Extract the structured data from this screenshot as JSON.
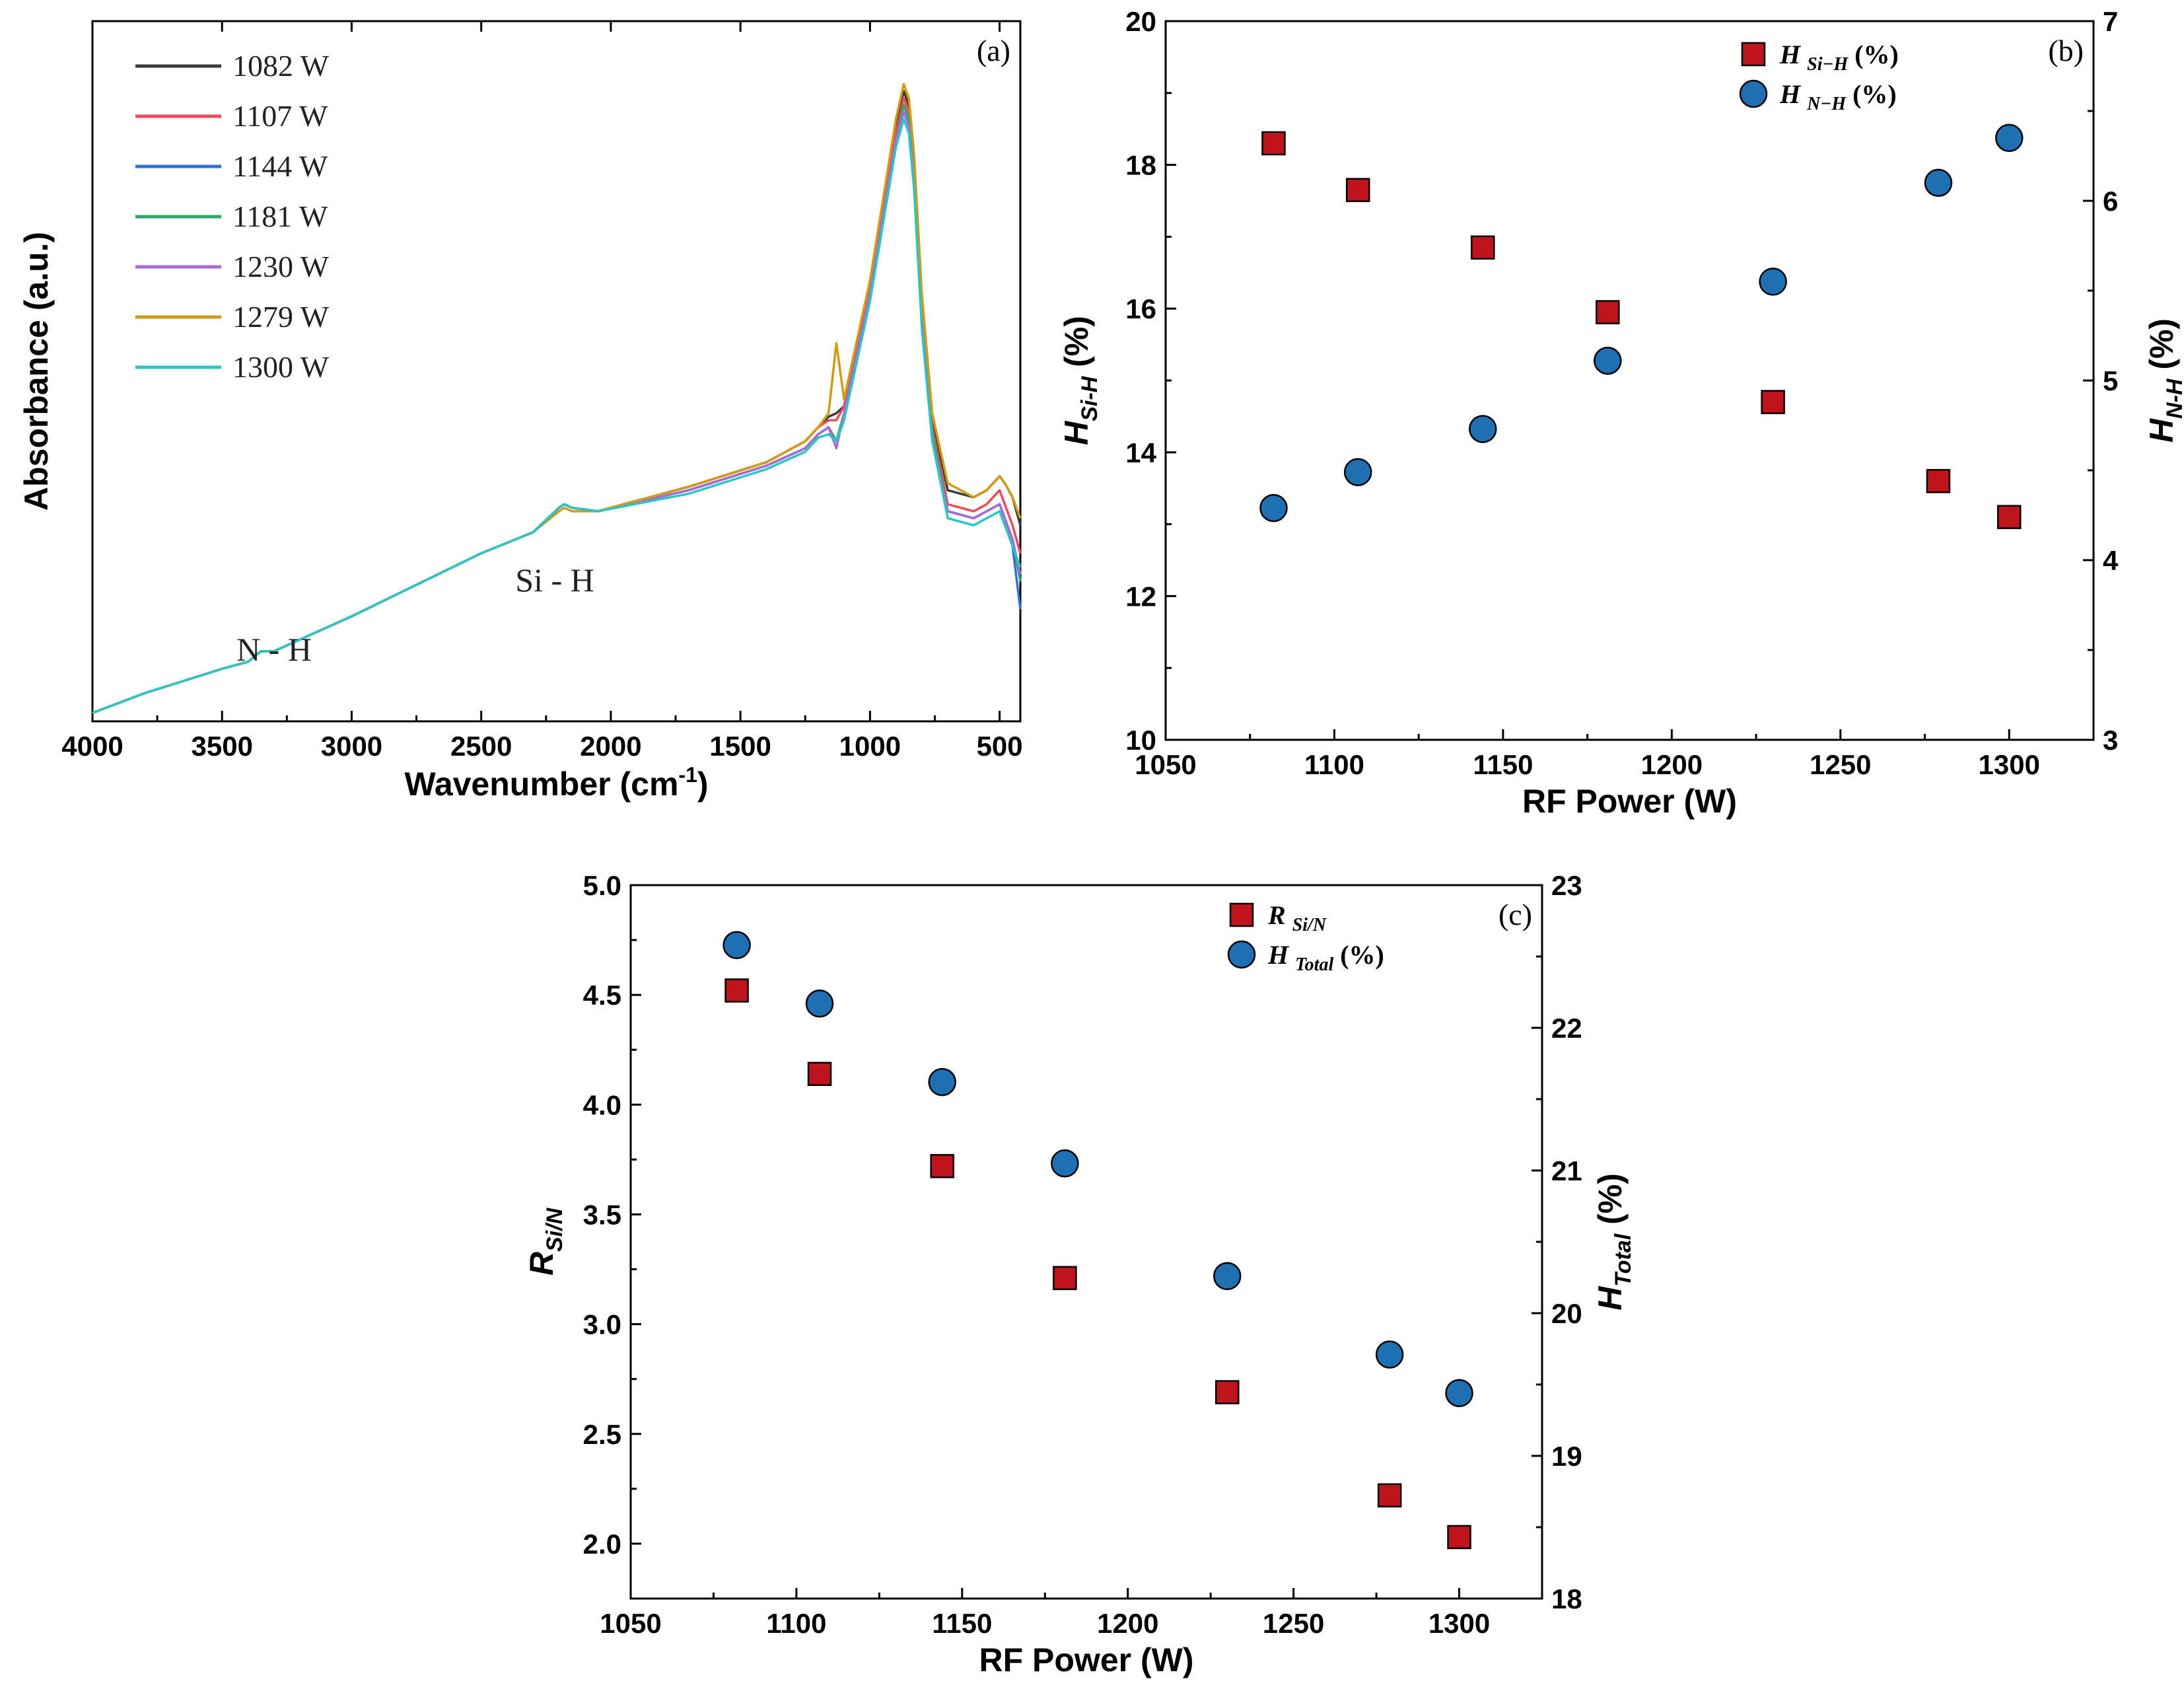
{
  "chart_data": [
    {
      "type": "line",
      "panel_label": "(a)",
      "title": "",
      "xlabel": "Wavenumber (cm",
      "xlabel_sup": "-1",
      "xlabel_end": ")",
      "ylabel": "Absorbance (a.u.)",
      "xlim": [
        4000,
        420
      ],
      "xticks": [
        4000,
        3500,
        3000,
        2500,
        2000,
        1500,
        1000,
        500
      ],
      "xtick_labels": [
        "4000",
        "3500",
        "3000",
        "2500",
        "2000",
        "1500",
        "1000",
        "500"
      ],
      "ylim": [
        0,
        1
      ],
      "annotations": [
        "N - H",
        "Si - H"
      ],
      "x": [
        4000,
        3800,
        3500,
        3400,
        3350,
        3300,
        3000,
        2500,
        2300,
        2200,
        2180,
        2150,
        2050,
        1700,
        1400,
        1250,
        1200,
        1160,
        1130,
        1100,
        1000,
        900,
        870,
        850,
        830,
        800,
        760,
        700,
        600,
        550,
        500,
        480,
        450,
        420
      ],
      "series": [
        {
          "name": "1082 W",
          "color": "#3a3a3a",
          "values": [
            0.012,
            0.04,
            0.075,
            0.085,
            0.1,
            0.1,
            0.15,
            0.24,
            0.27,
            0.305,
            0.31,
            0.305,
            0.3,
            0.335,
            0.37,
            0.4,
            0.42,
            0.435,
            0.44,
            0.45,
            0.62,
            0.85,
            0.9,
            0.88,
            0.8,
            0.6,
            0.43,
            0.33,
            0.32,
            0.33,
            0.35,
            0.34,
            0.32,
            0.28
          ]
        },
        {
          "name": "1107 W",
          "color": "#ef4a55",
          "values": [
            0.012,
            0.04,
            0.075,
            0.085,
            0.1,
            0.1,
            0.15,
            0.24,
            0.27,
            0.305,
            0.31,
            0.305,
            0.3,
            0.335,
            0.37,
            0.4,
            0.42,
            0.43,
            0.43,
            0.45,
            0.62,
            0.84,
            0.89,
            0.87,
            0.79,
            0.59,
            0.42,
            0.31,
            0.3,
            0.31,
            0.33,
            0.31,
            0.28,
            0.24
          ]
        },
        {
          "name": "1144 W",
          "color": "#2f6fd8",
          "values": [
            0.012,
            0.04,
            0.075,
            0.085,
            0.1,
            0.1,
            0.15,
            0.24,
            0.27,
            0.305,
            0.31,
            0.305,
            0.3,
            0.33,
            0.365,
            0.39,
            0.41,
            0.42,
            0.4,
            0.44,
            0.61,
            0.83,
            0.88,
            0.86,
            0.78,
            0.58,
            0.41,
            0.3,
            0.29,
            0.3,
            0.31,
            0.29,
            0.25,
            0.16
          ]
        },
        {
          "name": "1181 W",
          "color": "#2ea868",
          "values": [
            0.012,
            0.04,
            0.075,
            0.085,
            0.1,
            0.1,
            0.15,
            0.24,
            0.27,
            0.305,
            0.31,
            0.305,
            0.3,
            0.33,
            0.365,
            0.39,
            0.41,
            0.42,
            0.4,
            0.44,
            0.61,
            0.83,
            0.88,
            0.86,
            0.78,
            0.58,
            0.41,
            0.3,
            0.29,
            0.3,
            0.31,
            0.29,
            0.26,
            0.2
          ]
        },
        {
          "name": "1230 W",
          "color": "#a86ad6",
          "values": [
            0.012,
            0.04,
            0.075,
            0.085,
            0.1,
            0.1,
            0.15,
            0.24,
            0.27,
            0.305,
            0.31,
            0.305,
            0.3,
            0.33,
            0.365,
            0.39,
            0.41,
            0.42,
            0.39,
            0.44,
            0.61,
            0.83,
            0.87,
            0.85,
            0.77,
            0.57,
            0.4,
            0.3,
            0.29,
            0.3,
            0.31,
            0.29,
            0.26,
            0.21
          ]
        },
        {
          "name": "1279 W",
          "color": "#d19b14",
          "values": [
            0.012,
            0.04,
            0.075,
            0.085,
            0.1,
            0.1,
            0.15,
            0.24,
            0.27,
            0.3,
            0.305,
            0.3,
            0.3,
            0.335,
            0.37,
            0.4,
            0.42,
            0.44,
            0.54,
            0.46,
            0.63,
            0.86,
            0.91,
            0.89,
            0.81,
            0.61,
            0.44,
            0.34,
            0.32,
            0.33,
            0.35,
            0.34,
            0.32,
            0.29
          ]
        },
        {
          "name": "1300 W",
          "color": "#2ac6c6",
          "values": [
            0.012,
            0.04,
            0.075,
            0.085,
            0.1,
            0.1,
            0.15,
            0.24,
            0.27,
            0.305,
            0.31,
            0.305,
            0.3,
            0.325,
            0.36,
            0.385,
            0.405,
            0.41,
            0.4,
            0.43,
            0.6,
            0.82,
            0.86,
            0.84,
            0.76,
            0.56,
            0.4,
            0.29,
            0.28,
            0.29,
            0.3,
            0.28,
            0.25,
            0.22
          ]
        }
      ]
    },
    {
      "type": "scatter",
      "panel_label": "(b)",
      "title": "",
      "xlabel": "RF Power (W)",
      "ylabel_main": "H",
      "ylabel_sub": "Si-H",
      "ylabel_end": " (%)",
      "y2label_main": "H",
      "y2label_sub": "N-H",
      "y2label_end": " (%)",
      "xlim": [
        1050,
        1325
      ],
      "xticks": [
        1050,
        1100,
        1150,
        1200,
        1250,
        1300
      ],
      "xtick_labels": [
        "1050",
        "1100",
        "1150",
        "1200",
        "1250",
        "1300"
      ],
      "ylim": [
        10,
        20
      ],
      "yticks": [
        10,
        12,
        14,
        16,
        18,
        20
      ],
      "ytick_labels": [
        "10",
        "12",
        "14",
        "16",
        "18",
        "20"
      ],
      "y2lim": [
        3,
        7
      ],
      "y2ticks": [
        3,
        4,
        5,
        6,
        7
      ],
      "y2tick_labels": [
        "3",
        "4",
        "5",
        "6",
        "7"
      ],
      "x": [
        1082,
        1107,
        1144,
        1181,
        1230,
        1279,
        1300
      ],
      "series": [
        {
          "name": "H Si−H (%)",
          "legend_main": "H ",
          "legend_sub": "Si−H",
          "legend_end": " (%)",
          "axis": "left",
          "marker": "square",
          "color": "#c0141c",
          "values": [
            18.3,
            17.65,
            16.85,
            15.95,
            14.7,
            13.6,
            13.1
          ]
        },
        {
          "name": "H N−H (%)",
          "legend_main": "H ",
          "legend_sub": "N−H",
          "legend_end": " (%)",
          "axis": "right",
          "marker": "circle",
          "color": "#1f6fb3",
          "values": [
            4.29,
            4.49,
            4.73,
            5.11,
            5.55,
            6.1,
            6.35
          ]
        }
      ]
    },
    {
      "type": "scatter",
      "panel_label": "(c)",
      "title": "",
      "xlabel": "RF Power (W)",
      "ylabel_main": "R",
      "ylabel_sub": "Si/N",
      "ylabel_end": "",
      "y2label_main": "H",
      "y2label_sub": "Total",
      "y2label_end": " (%)",
      "xlim": [
        1050,
        1325
      ],
      "xticks": [
        1050,
        1100,
        1150,
        1200,
        1250,
        1300
      ],
      "xtick_labels": [
        "1050",
        "1100",
        "1150",
        "1200",
        "1250",
        "1300"
      ],
      "ylim": [
        1.75,
        5.0
      ],
      "yticks": [
        2.0,
        2.5,
        3.0,
        3.5,
        4.0,
        4.5,
        5.0
      ],
      "ytick_labels": [
        "2.0",
        "2.5",
        "3.0",
        "3.5",
        "4.0",
        "4.5",
        "5.0"
      ],
      "y2lim": [
        18,
        23
      ],
      "y2ticks": [
        18,
        19,
        20,
        21,
        22,
        23
      ],
      "y2tick_labels": [
        "18",
        "19",
        "20",
        "21",
        "22",
        "23"
      ],
      "x": [
        1082,
        1107,
        1144,
        1181,
        1230,
        1279,
        1300
      ],
      "series": [
        {
          "name": "R Si/N",
          "legend_main": "R ",
          "legend_sub": "Si/N",
          "legend_end": "",
          "axis": "left",
          "marker": "square",
          "color": "#c0141c",
          "values": [
            4.52,
            4.14,
            3.72,
            3.21,
            2.69,
            2.22,
            2.03
          ]
        },
        {
          "name": "H Total (%)",
          "legend_main": "H ",
          "legend_sub": "Total",
          "legend_end": " (%)",
          "axis": "right",
          "marker": "circle",
          "color": "#1f6fb3",
          "values": [
            22.58,
            22.17,
            21.62,
            21.05,
            20.26,
            19.71,
            19.44
          ]
        }
      ]
    }
  ]
}
